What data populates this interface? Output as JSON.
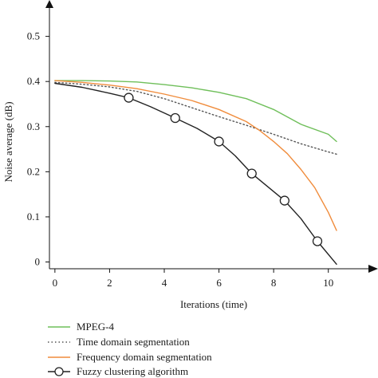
{
  "chart_data": {
    "type": "line",
    "xlabel": "Iterations (time)",
    "ylabel": "Noise average (dB)",
    "xlim": [
      -0.2,
      11
    ],
    "ylim": [
      -0.015,
      0.57
    ],
    "x_ticks": [
      "0",
      "2",
      "4",
      "6",
      "8",
      "10"
    ],
    "y_ticks": [
      "0",
      "0.1",
      "0.2",
      "0.3",
      "0.4",
      "0.5"
    ],
    "grid": false,
    "legend_position": "bottom",
    "series": [
      {
        "name": "MPEG-4",
        "color": "#6fbf5a",
        "style": "solid",
        "marker": "none",
        "x": [
          0,
          1,
          2,
          3,
          4,
          5,
          6,
          7,
          8,
          9,
          10,
          10.3
        ],
        "y": [
          0.402,
          0.402,
          0.401,
          0.399,
          0.393,
          0.386,
          0.376,
          0.362,
          0.338,
          0.305,
          0.283,
          0.267
        ]
      },
      {
        "name": "Time domain segmentation",
        "color": "#555555",
        "style": "dotted",
        "marker": "none",
        "x": [
          0,
          1,
          2,
          3,
          4,
          5,
          6,
          7,
          8,
          9,
          10,
          10.3
        ],
        "y": [
          0.398,
          0.394,
          0.388,
          0.378,
          0.362,
          0.342,
          0.322,
          0.303,
          0.283,
          0.262,
          0.244,
          0.239
        ]
      },
      {
        "name": "Frequency domain segmentation",
        "color": "#f08c3c",
        "style": "solid",
        "marker": "none",
        "x": [
          0,
          1,
          2,
          3,
          4,
          5,
          6,
          7,
          7.5,
          8,
          8.5,
          9,
          9.5,
          10,
          10.3
        ],
        "y": [
          0.402,
          0.398,
          0.392,
          0.384,
          0.372,
          0.358,
          0.338,
          0.311,
          0.291,
          0.267,
          0.24,
          0.205,
          0.165,
          0.11,
          0.07
        ]
      },
      {
        "name": "Fuzzy clustering algorithm",
        "color": "#222222",
        "style": "solid",
        "marker": "circle",
        "x": [
          0,
          1,
          2,
          2.7,
          3.5,
          4.4,
          5.2,
          6,
          6.6,
          7.2,
          7.8,
          8.4,
          9,
          9.6,
          10.3
        ],
        "y": [
          0.396,
          0.387,
          0.374,
          0.364,
          0.344,
          0.319,
          0.296,
          0.267,
          0.235,
          0.196,
          0.166,
          0.136,
          0.096,
          0.046,
          -0.005
        ],
        "marker_x": [
          2.7,
          4.4,
          6,
          7.2,
          8.4,
          9.6
        ]
      }
    ]
  }
}
